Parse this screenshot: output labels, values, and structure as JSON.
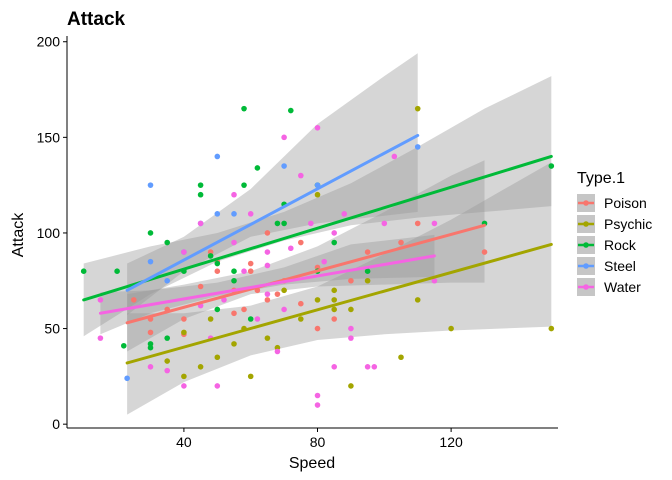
{
  "chart_data": {
    "type": "scatter",
    "title": "Attack",
    "xlabel": "Speed",
    "ylabel": "Attack",
    "xlim": [
      5,
      152
    ],
    "ylim": [
      -2,
      203
    ],
    "x_ticks": [
      40,
      80,
      120
    ],
    "y_ticks": [
      0,
      50,
      100,
      150,
      200
    ],
    "grid": false,
    "legend": {
      "title": "Type.1",
      "placement": "right"
    },
    "confidence_band_color": "#999999",
    "series": [
      {
        "name": "Poison",
        "color": "#F8766D",
        "points": [
          [
            25,
            65
          ],
          [
            30,
            55
          ],
          [
            30,
            48
          ],
          [
            35,
            60
          ],
          [
            40,
            55
          ],
          [
            40,
            47
          ],
          [
            45,
            72
          ],
          [
            48,
            90
          ],
          [
            50,
            85
          ],
          [
            50,
            80
          ],
          [
            55,
            70
          ],
          [
            55,
            58
          ],
          [
            58,
            60
          ],
          [
            60,
            84
          ],
          [
            60,
            80
          ],
          [
            62,
            70
          ],
          [
            65,
            100
          ],
          [
            65,
            65
          ],
          [
            68,
            68
          ],
          [
            70,
            75
          ],
          [
            75,
            63
          ],
          [
            75,
            95
          ],
          [
            80,
            82
          ],
          [
            80,
            50
          ],
          [
            85,
            55
          ],
          [
            90,
            75
          ],
          [
            95,
            90
          ],
          [
            105,
            95
          ],
          [
            110,
            105
          ],
          [
            130,
            90
          ]
        ],
        "fit": {
          "x": [
            23,
            130
          ],
          "y": [
            53,
            104
          ]
        },
        "band": [
          [
            23,
            38,
            68
          ],
          [
            40,
            55,
            73
          ],
          [
            60,
            68,
            80
          ],
          [
            80,
            72,
            93
          ],
          [
            100,
            73,
            111
          ],
          [
            120,
            74,
            130
          ],
          [
            130,
            74,
            138
          ]
        ]
      },
      {
        "name": "Psychic",
        "color": "#A3A500",
        "points": [
          [
            35,
            33
          ],
          [
            40,
            25
          ],
          [
            40,
            48
          ],
          [
            45,
            30
          ],
          [
            48,
            55
          ],
          [
            50,
            35
          ],
          [
            55,
            42
          ],
          [
            58,
            50
          ],
          [
            60,
            25
          ],
          [
            65,
            45
          ],
          [
            68,
            40
          ],
          [
            70,
            70
          ],
          [
            75,
            55
          ],
          [
            80,
            65
          ],
          [
            80,
            120
          ],
          [
            85,
            60
          ],
          [
            85,
            65
          ],
          [
            85,
            70
          ],
          [
            90,
            20
          ],
          [
            90,
            60
          ],
          [
            95,
            75
          ],
          [
            105,
            35
          ],
          [
            110,
            65
          ],
          [
            110,
            165
          ],
          [
            120,
            50
          ],
          [
            150,
            50
          ]
        ],
        "fit": {
          "x": [
            23,
            150
          ],
          "y": [
            32,
            94
          ]
        },
        "band": [
          [
            23,
            5,
            58
          ],
          [
            40,
            22,
            58
          ],
          [
            60,
            36,
            62
          ],
          [
            80,
            44,
            72
          ],
          [
            100,
            47,
            89
          ],
          [
            120,
            49,
            107
          ],
          [
            150,
            51,
            137
          ]
        ]
      },
      {
        "name": "Rock",
        "color": "#00BA38",
        "points": [
          [
            10,
            80
          ],
          [
            20,
            80
          ],
          [
            22,
            41
          ],
          [
            30,
            40
          ],
          [
            30,
            100
          ],
          [
            30,
            42
          ],
          [
            35,
            95
          ],
          [
            35,
            45
          ],
          [
            40,
            80
          ],
          [
            45,
            120
          ],
          [
            45,
            125
          ],
          [
            48,
            88
          ],
          [
            50,
            60
          ],
          [
            50,
            84
          ],
          [
            55,
            80
          ],
          [
            55,
            75
          ],
          [
            58,
            125
          ],
          [
            58,
            165
          ],
          [
            60,
            55
          ],
          [
            62,
            134
          ],
          [
            68,
            105
          ],
          [
            70,
            105
          ],
          [
            70,
            115
          ],
          [
            72,
            164
          ],
          [
            80,
            80
          ],
          [
            80,
            125
          ],
          [
            85,
            95
          ],
          [
            95,
            80
          ],
          [
            130,
            105
          ],
          [
            150,
            135
          ]
        ],
        "fit": {
          "x": [
            10,
            150
          ],
          "y": [
            65,
            140
          ]
        },
        "band": [
          [
            10,
            46,
            84
          ],
          [
            30,
            68,
            93
          ],
          [
            50,
            85,
            100
          ],
          [
            70,
            96,
            111
          ],
          [
            90,
            104,
            126
          ],
          [
            110,
            108,
            145
          ],
          [
            130,
            111,
            165
          ],
          [
            150,
            114,
            182
          ]
        ]
      },
      {
        "name": "Steel",
        "color": "#619CFF",
        "points": [
          [
            23,
            24
          ],
          [
            30,
            125
          ],
          [
            30,
            85
          ],
          [
            35,
            75
          ],
          [
            40,
            90
          ],
          [
            45,
            105
          ],
          [
            50,
            140
          ],
          [
            50,
            110
          ],
          [
            55,
            110
          ],
          [
            70,
            135
          ],
          [
            80,
            125
          ],
          [
            110,
            145
          ]
        ],
        "fit": {
          "x": [
            23,
            110
          ],
          "y": [
            70,
            151
          ]
        },
        "band": [
          [
            23,
            57,
            84
          ],
          [
            40,
            80,
            98
          ],
          [
            60,
            98,
            123
          ],
          [
            80,
            105,
            157
          ],
          [
            100,
            109,
            182
          ],
          [
            110,
            111,
            194
          ]
        ]
      },
      {
        "name": "Water",
        "color": "#F564E3",
        "points": [
          [
            15,
            45
          ],
          [
            15,
            65
          ],
          [
            30,
            30
          ],
          [
            35,
            28
          ],
          [
            40,
            20
          ],
          [
            40,
            90
          ],
          [
            45,
            105
          ],
          [
            48,
            45
          ],
          [
            50,
            20
          ],
          [
            52,
            65
          ],
          [
            55,
            120
          ],
          [
            55,
            95
          ],
          [
            58,
            80
          ],
          [
            60,
            110
          ],
          [
            62,
            55
          ],
          [
            65,
            90
          ],
          [
            65,
            83
          ],
          [
            68,
            38
          ],
          [
            70,
            150
          ],
          [
            70,
            60
          ],
          [
            72,
            92
          ],
          [
            75,
            130
          ],
          [
            78,
            105
          ],
          [
            80,
            155
          ],
          [
            80,
            15
          ],
          [
            80,
            10
          ],
          [
            82,
            85
          ],
          [
            85,
            30
          ],
          [
            85,
            100
          ],
          [
            88,
            110
          ],
          [
            90,
            50
          ],
          [
            90,
            45
          ],
          [
            95,
            30
          ],
          [
            97,
            30
          ],
          [
            100,
            105
          ],
          [
            103,
            140
          ],
          [
            115,
            105
          ],
          [
            115,
            75
          ],
          [
            65,
            68
          ],
          [
            45,
            62
          ]
        ],
        "fit": {
          "x": [
            15,
            115
          ],
          "y": [
            58,
            88
          ]
        },
        "band": [
          [
            15,
            47,
            69
          ],
          [
            30,
            58,
            70
          ],
          [
            50,
            67,
            74
          ],
          [
            70,
            73,
            82
          ],
          [
            90,
            76,
            94
          ],
          [
            115,
            77,
            99
          ]
        ]
      }
    ]
  }
}
